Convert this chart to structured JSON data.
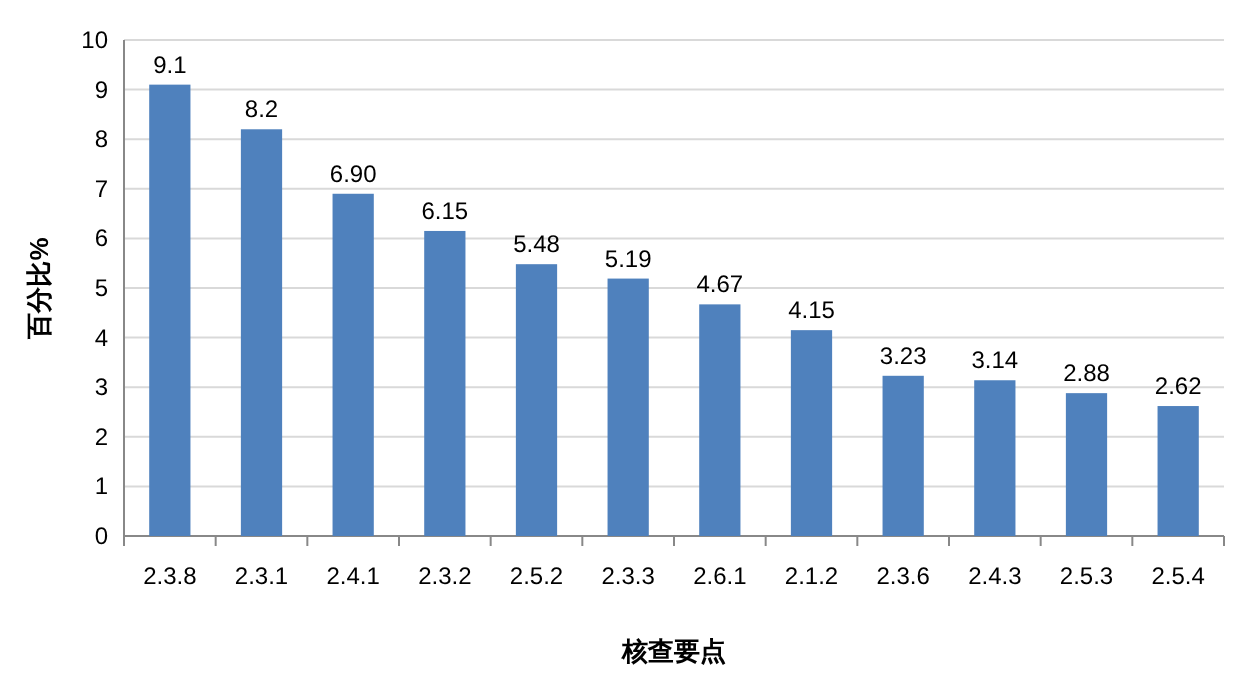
{
  "chart_data": {
    "type": "bar",
    "xlabel": "核查要点",
    "ylabel": "百分比%",
    "categories": [
      "2.3.8",
      "2.3.1",
      "2.4.1",
      "2.3.2",
      "2.5.2",
      "2.3.3",
      "2.6.1",
      "2.1.2",
      "2.3.6",
      "2.4.3",
      "2.5.3",
      "2.5.4"
    ],
    "values": [
      9.1,
      8.2,
      6.9,
      6.15,
      5.48,
      5.19,
      4.67,
      4.15,
      3.23,
      3.14,
      2.88,
      2.62
    ],
    "value_labels": [
      "9.1",
      "8.2",
      "6.90",
      "6.15",
      "5.48",
      "5.19",
      "4.67",
      "4.15",
      "3.23",
      "3.14",
      "2.88",
      "2.62"
    ],
    "color": "#4f81bd",
    "ylim": [
      0,
      10
    ],
    "yticks": [
      0,
      1,
      2,
      3,
      4,
      5,
      6,
      7,
      8,
      9,
      10
    ],
    "grid": "y"
  }
}
